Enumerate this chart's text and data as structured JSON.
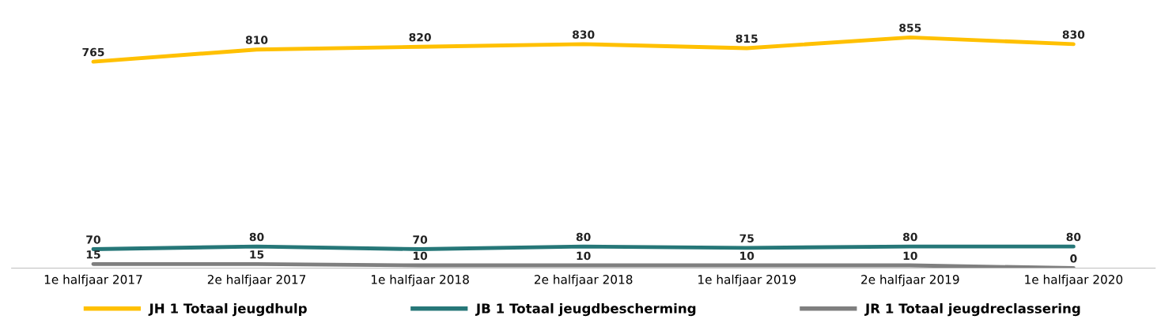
{
  "chart_data": {
    "type": "line",
    "categories": [
      "1e halfjaar 2017",
      "2e halfjaar 2017",
      "1e halfjaar 2018",
      "2e halfjaar 2018",
      "1e halfjaar 2019",
      "2e halfjaar 2019",
      "1e halfjaar 2020"
    ],
    "series": [
      {
        "name": "JH 1 Totaal jeugdhulp",
        "color": "#ffc000",
        "values": [
          765,
          810,
          820,
          830,
          815,
          855,
          830
        ]
      },
      {
        "name": "JB 1 Totaal jeugdbescherming",
        "color": "#267778",
        "values": [
          70,
          80,
          70,
          80,
          75,
          80,
          80
        ]
      },
      {
        "name": "JR 1 Totaal jeugdreclassering",
        "color": "#7f7f7f",
        "values": [
          15,
          15,
          10,
          10,
          10,
          10,
          0
        ]
      }
    ],
    "data_labels": true,
    "legend": "bottom",
    "grid": false,
    "marker": "none",
    "line_style": "solid"
  }
}
